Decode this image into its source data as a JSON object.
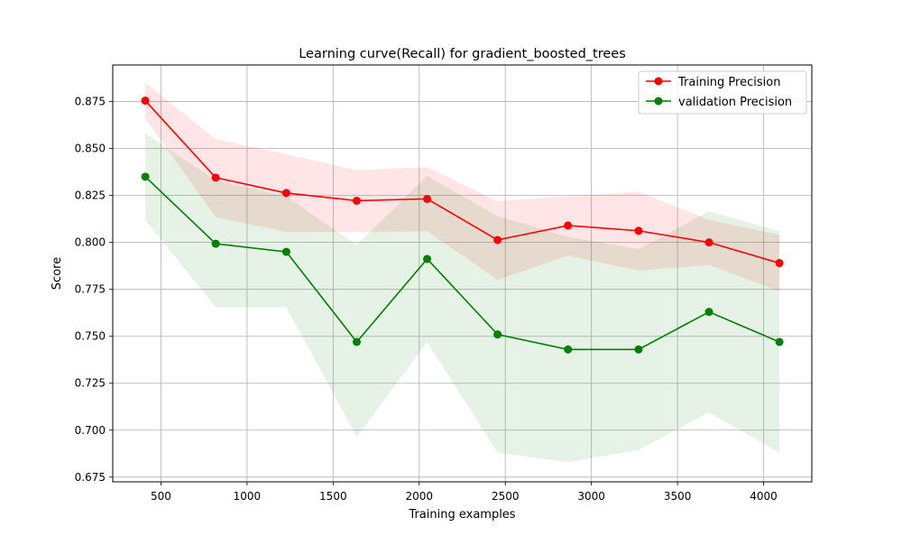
{
  "chart_data": {
    "type": "line",
    "title": "Learning curve(Recall) for gradient_boosted_trees",
    "xlabel": "Training examples",
    "ylabel": "Score",
    "xlim": [
      220,
      4280
    ],
    "ylim": [
      0.6725,
      0.8945
    ],
    "xticks": [
      500,
      1000,
      1500,
      2000,
      2500,
      3000,
      3500,
      4000
    ],
    "xtick_labels": [
      "500",
      "1000",
      "1500",
      "2000",
      "2500",
      "3000",
      "3500",
      "4000"
    ],
    "yticks": [
      0.675,
      0.7,
      0.725,
      0.75,
      0.775,
      0.8,
      0.825,
      0.85,
      0.875
    ],
    "ytick_labels": [
      "0.675",
      "0.700",
      "0.725",
      "0.750",
      "0.775",
      "0.800",
      "0.825",
      "0.850",
      "0.875"
    ],
    "grid": true,
    "legend_position": "top-right",
    "x": [
      409,
      818,
      1228,
      1637,
      2046,
      2455,
      2864,
      3274,
      3683,
      4092
    ],
    "series": [
      {
        "name": "Training Precision",
        "color": "#ff0000",
        "band_color": "#ff0000",
        "values": [
          0.8755,
          0.8345,
          0.8263,
          0.8222,
          0.8232,
          0.8013,
          0.809,
          0.8062,
          0.8,
          0.789
        ],
        "lower": [
          0.866,
          0.8135,
          0.8056,
          0.8055,
          0.806,
          0.78,
          0.793,
          0.785,
          0.788,
          0.774
        ],
        "upper": [
          0.885,
          0.855,
          0.847,
          0.8385,
          0.84,
          0.822,
          0.8245,
          0.827,
          0.812,
          0.804
        ]
      },
      {
        "name": "validation Precision",
        "color": "#008000",
        "band_color": "#008000",
        "values": [
          0.835,
          0.7993,
          0.795,
          0.747,
          0.7912,
          0.751,
          0.743,
          0.743,
          0.763,
          0.747
        ],
        "lower": [
          0.812,
          0.7655,
          0.7655,
          0.6965,
          0.747,
          0.688,
          0.683,
          0.6895,
          0.7095,
          0.688
        ],
        "upper": [
          0.858,
          0.833,
          0.8245,
          0.7985,
          0.8355,
          0.814,
          0.803,
          0.7965,
          0.8165,
          0.806
        ]
      }
    ]
  }
}
